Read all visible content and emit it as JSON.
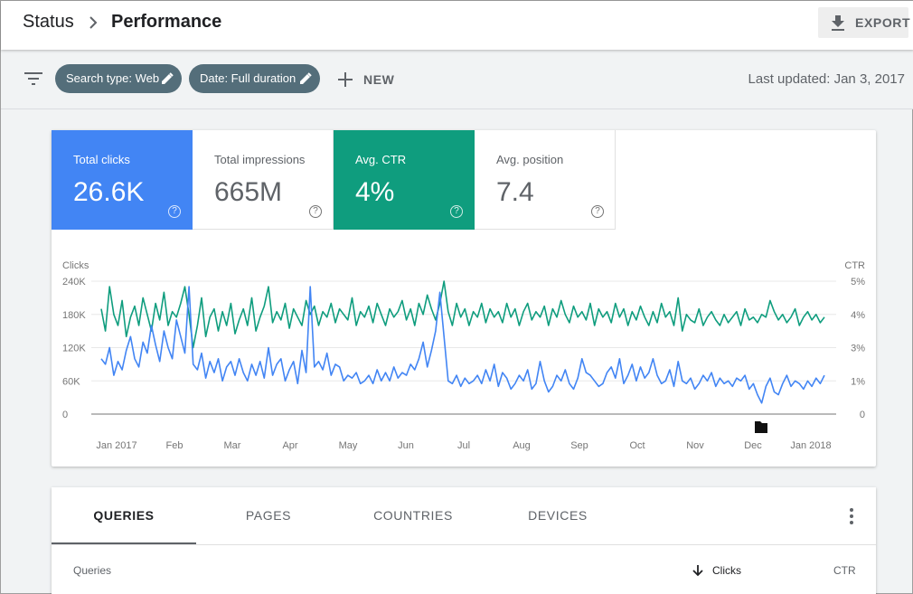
{
  "header": {
    "breadcrumb_root": "Status",
    "page_title": "Performance",
    "export_label": "EXPORT"
  },
  "filters": {
    "chip1": "Search type: Web",
    "chip2": "Date: Full duration",
    "new_label": "NEW",
    "last_updated": "Last updated: Jan 3, 2017"
  },
  "metrics": [
    {
      "label": "Total clicks",
      "value": "26.6K",
      "color": "#4285f4",
      "selected": true
    },
    {
      "label": "Total impressions",
      "value": "665M",
      "selected": false
    },
    {
      "label": "Avg. CTR",
      "value": "4%",
      "color": "#0f9d7e",
      "selected": true
    },
    {
      "label": "Avg. position",
      "value": "7.4",
      "selected": false
    }
  ],
  "chart_data": {
    "type": "line",
    "y_left_label": "Clicks",
    "y_right_label": "CTR",
    "y_left_ticks": [
      "240K",
      "180K",
      "120K",
      "60K",
      "0"
    ],
    "y_right_ticks": [
      "5%",
      "4%",
      "3%",
      "1%",
      "0"
    ],
    "ylim_left": [
      0,
      240000
    ],
    "x_ticks": [
      "Jan 2017",
      "Feb",
      "Mar",
      "Apr",
      "May",
      "Jun",
      "Jul",
      "Aug",
      "Sep",
      "Oct",
      "Nov",
      "Dec",
      "Jan 2018"
    ],
    "grid": true,
    "legend": "none",
    "series": [
      {
        "color": "#4285f4",
        "axis": "left",
        "values": [
          100,
          90,
          120,
          70,
          95,
          80,
          115,
          140,
          100,
          85,
          130,
          110,
          160,
          125,
          95,
          150,
          120,
          100,
          170,
          140,
          110,
          230,
          90,
          80,
          110,
          65,
          95,
          75,
          100,
          60,
          85,
          95,
          70,
          100,
          75,
          60,
          90,
          70,
          95,
          65,
          120,
          70,
          90,
          100,
          60,
          80,
          95,
          55,
          115,
          75,
          230,
          85,
          95,
          80,
          110,
          70,
          90,
          85,
          60,
          70,
          65,
          75,
          55,
          60,
          70,
          55,
          80,
          60,
          75,
          60,
          85,
          65,
          75,
          70,
          90,
          80,
          100,
          130,
          85,
          115,
          150,
          220,
          140,
          60,
          55,
          70,
          50,
          65,
          55,
          60,
          70,
          55,
          80,
          60,
          90,
          50,
          75,
          65,
          45,
          55,
          70,
          60,
          80,
          45,
          55,
          95,
          60,
          40,
          50,
          70,
          60,
          80,
          55,
          45,
          65,
          100,
          75,
          70,
          60,
          50,
          55,
          75,
          85,
          65,
          100,
          55,
          70,
          90,
          60,
          85,
          65,
          75,
          100,
          70,
          55,
          60,
          80,
          50,
          95,
          60,
          55,
          65,
          45,
          55,
          70,
          60,
          75,
          50,
          65,
          55,
          60,
          50,
          65,
          60,
          70,
          45,
          55,
          35,
          20,
          50,
          65,
          40,
          35,
          55,
          70,
          50,
          60,
          55,
          45,
          60,
          50,
          65,
          55,
          70
        ]
      },
      {
        "color": "#0f9d7e",
        "axis": "left",
        "values": [
          190,
          150,
          230,
          180,
          160,
          205,
          140,
          175,
          195,
          160,
          210,
          180,
          150,
          200,
          170,
          220,
          160,
          185,
          175,
          200,
          230,
          180,
          120,
          160,
          210,
          140,
          175,
          190,
          150,
          185,
          160,
          200,
          145,
          170,
          190,
          160,
          210,
          150,
          175,
          195,
          230,
          165,
          185,
          170,
          200,
          155,
          190,
          175,
          160,
          205,
          180,
          195,
          160,
          185,
          175,
          200,
          165,
          190,
          180,
          170,
          210,
          160,
          185,
          175,
          195,
          165,
          200,
          180,
          160,
          190,
          175,
          185,
          205,
          170,
          190,
          160,
          200,
          180,
          215,
          190,
          170,
          200,
          240,
          185,
          160,
          200,
          175,
          190,
          160,
          185,
          175,
          200,
          165,
          190,
          175,
          185,
          165,
          200,
          175,
          190,
          160,
          185,
          200,
          170,
          185,
          175,
          195,
          160,
          190,
          175,
          205,
          180,
          165,
          195,
          175,
          185,
          170,
          200,
          160,
          190,
          175,
          185,
          165,
          200,
          175,
          190,
          160,
          185,
          170,
          195,
          175,
          160,
          185,
          165,
          200,
          175,
          185,
          160,
          210,
          150,
          180,
          170,
          165,
          190,
          160,
          175,
          185,
          170,
          160,
          180,
          165,
          175,
          185,
          160,
          190,
          170,
          175,
          165,
          180,
          175,
          205,
          185,
          170,
          180,
          165,
          175,
          190,
          160,
          175,
          185,
          170,
          180,
          165,
          175
        ]
      }
    ]
  },
  "tabs": [
    {
      "label": "QUERIES",
      "active": true
    },
    {
      "label": "PAGES",
      "active": false
    },
    {
      "label": "COUNTRIES",
      "active": false
    },
    {
      "label": "DEVICES",
      "active": false
    }
  ],
  "table": {
    "col_queries": "Queries",
    "col_clicks": "Clicks",
    "col_ctr": "CTR"
  }
}
